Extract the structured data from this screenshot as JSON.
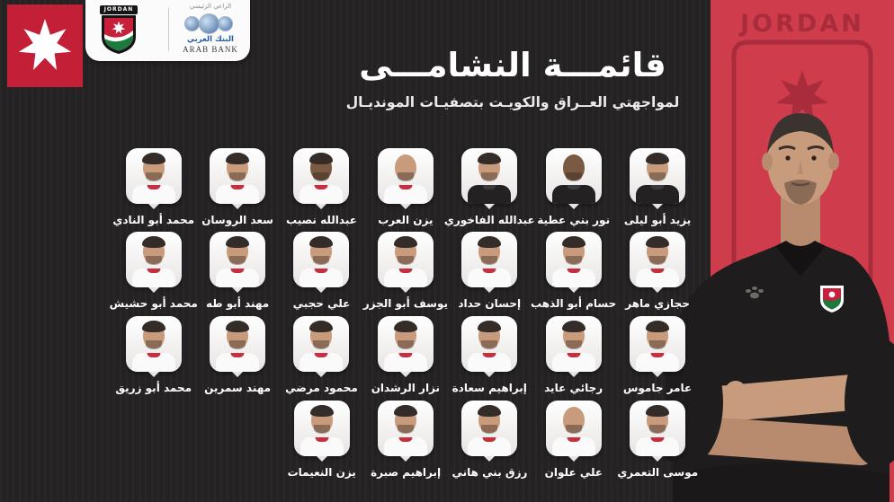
{
  "sponsor_box": {
    "sponsor_label": "الراعي الرئيسي",
    "bank_name_ar": "البنك العربي",
    "bank_name_en": "ARAB BANK",
    "crest_banner": "JORDAN"
  },
  "headline": {
    "title": "قائمـــة النشامـــى",
    "subtitle": "لمواجهتي العــراق والكويـت بتصفيـات المونديـال"
  },
  "side_panel": {
    "label": "JORDAN"
  },
  "squad": {
    "rows": [
      {
        "players": [
          {
            "name": "محمد أبو النادي",
            "jersey": "white",
            "skin": "tan"
          },
          {
            "name": "سعد الروسان",
            "jersey": "white",
            "skin": "tan"
          },
          {
            "name": "عبدالله نصيب",
            "jersey": "white",
            "skin": "dark"
          },
          {
            "name": "يزن العرب",
            "jersey": "white",
            "skin": "tan",
            "bald": true
          },
          {
            "name": "عبدالله الفاخوري",
            "jersey": "black",
            "skin": "tan"
          },
          {
            "name": "نور بني عطية",
            "jersey": "black",
            "skin": "dark",
            "bald": true
          },
          {
            "name": "يزيد أبو ليلى",
            "jersey": "black",
            "skin": "tan"
          }
        ]
      },
      {
        "players": [
          {
            "name": "محمد أبو حشيش",
            "jersey": "white",
            "skin": "tan"
          },
          {
            "name": "مهند أبو طه",
            "jersey": "white",
            "skin": "tan"
          },
          {
            "name": "علي حجبي",
            "jersey": "white",
            "skin": "tan"
          },
          {
            "name": "يوسف أبو الجزر",
            "jersey": "white",
            "skin": "tan"
          },
          {
            "name": "إحسان حداد",
            "jersey": "white",
            "skin": "tan"
          },
          {
            "name": "حسام أبو الذهب",
            "jersey": "white",
            "skin": "tan"
          },
          {
            "name": "حجازي ماهر",
            "jersey": "white",
            "skin": "tan"
          }
        ]
      },
      {
        "players": [
          {
            "name": "محمد أبو زريق",
            "jersey": "white",
            "skin": "tan"
          },
          {
            "name": "مهند سمرين",
            "jersey": "white",
            "skin": "tan"
          },
          {
            "name": "محمود مرضي",
            "jersey": "white",
            "skin": "tan"
          },
          {
            "name": "نزار الرشدان",
            "jersey": "white",
            "skin": "tan"
          },
          {
            "name": "إبراهيم سعادة",
            "jersey": "white",
            "skin": "tan"
          },
          {
            "name": "رجائي عايد",
            "jersey": "white",
            "skin": "tan"
          },
          {
            "name": "عامر جاموس",
            "jersey": "white",
            "skin": "tan"
          }
        ]
      },
      {
        "players": [
          {
            "name": "يزن النعيمات",
            "jersey": "white",
            "skin": "tan"
          },
          {
            "name": "إبراهيم صبرة",
            "jersey": "white",
            "skin": "tan"
          },
          {
            "name": "رزق بني هاني",
            "jersey": "white",
            "skin": "tan"
          },
          {
            "name": "علي علوان",
            "jersey": "white",
            "skin": "tan",
            "bald": true
          },
          {
            "name": "موسى التعمري",
            "jersey": "white",
            "skin": "tan"
          }
        ]
      }
    ]
  },
  "colors": {
    "background": "#242223",
    "flag_red": "#c31f37",
    "panel_red": "#cf3c4b",
    "panel_dark_red": "#a82c3c",
    "crest_red": "#c8203a",
    "crest_green": "#1c7a3c",
    "card_light": "#f4f2f0",
    "text_white": "#ffffff",
    "bank_blue": "#1f5c9e"
  }
}
